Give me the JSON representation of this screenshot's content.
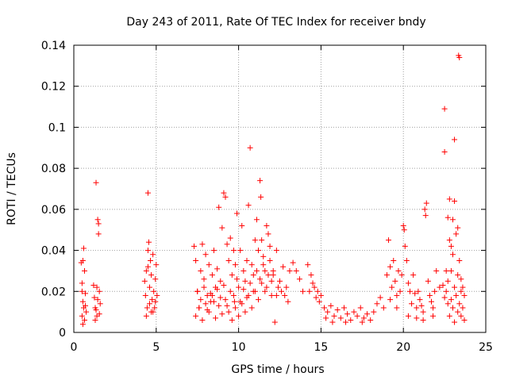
{
  "chart_data": {
    "type": "scatter",
    "title": "Day 243 of 2011, Rate Of TEC Index for receiver bndy",
    "xlabel": "GPS time / hours",
    "ylabel": "ROTI / TECUs",
    "xlim": [
      0,
      25
    ],
    "ylim": [
      0,
      0.14
    ],
    "x_ticks": [
      "0",
      "5",
      "10",
      "15",
      "20",
      "25"
    ],
    "y_ticks": [
      "0",
      "0.02",
      "0.04",
      "0.06",
      "0.08",
      "0.1",
      "0.12",
      "0.14"
    ],
    "grid": true,
    "legend": "none",
    "marker": "+",
    "color": "#ff0000",
    "series": [
      {
        "points": [
          [
            0.45,
            0.034
          ],
          [
            0.5,
            0.024
          ],
          [
            0.55,
            0.015
          ],
          [
            0.6,
            0.041
          ],
          [
            0.65,
            0.03
          ],
          [
            0.5,
            0.008
          ],
          [
            0.55,
            0.004
          ],
          [
            0.6,
            0.012
          ],
          [
            0.7,
            0.019
          ],
          [
            0.75,
            0.01
          ],
          [
            0.5,
            0.02
          ],
          [
            0.65,
            0.006
          ],
          [
            0.7,
            0.013
          ],
          [
            0.55,
            0.035
          ],
          [
            1.2,
            0.023
          ],
          [
            1.25,
            0.017
          ],
          [
            1.3,
            0.012
          ],
          [
            1.35,
            0.073
          ],
          [
            1.4,
            0.008
          ],
          [
            1.45,
            0.055
          ],
          [
            1.5,
            0.053
          ],
          [
            1.5,
            0.048
          ],
          [
            1.55,
            0.02
          ],
          [
            1.6,
            0.014
          ],
          [
            1.3,
            0.006
          ],
          [
            1.4,
            0.022
          ],
          [
            1.55,
            0.009
          ],
          [
            1.45,
            0.016
          ],
          [
            1.35,
            0.011
          ],
          [
            4.3,
            0.025
          ],
          [
            4.35,
            0.018
          ],
          [
            4.4,
            0.03
          ],
          [
            4.45,
            0.012
          ],
          [
            4.5,
            0.068
          ],
          [
            4.5,
            0.04
          ],
          [
            4.55,
            0.044
          ],
          [
            4.6,
            0.022
          ],
          [
            4.65,
            0.035
          ],
          [
            4.7,
            0.028
          ],
          [
            4.75,
            0.016
          ],
          [
            4.8,
            0.038
          ],
          [
            4.85,
            0.02
          ],
          [
            4.9,
            0.012
          ],
          [
            4.95,
            0.026
          ],
          [
            5.0,
            0.033
          ],
          [
            5.05,
            0.018
          ],
          [
            4.4,
            0.008
          ],
          [
            4.6,
            0.014
          ],
          [
            4.8,
            0.01
          ],
          [
            4.95,
            0.015
          ],
          [
            4.5,
            0.032
          ],
          [
            4.7,
            0.01
          ],
          [
            7.3,
            0.042
          ],
          [
            7.4,
            0.035
          ],
          [
            7.5,
            0.02
          ],
          [
            7.6,
            0.012
          ],
          [
            7.7,
            0.03
          ],
          [
            7.8,
            0.043
          ],
          [
            7.9,
            0.026
          ],
          [
            8.0,
            0.038
          ],
          [
            8.1,
            0.018
          ],
          [
            8.2,
            0.033
          ],
          [
            8.3,
            0.015
          ],
          [
            8.4,
            0.028
          ],
          [
            8.5,
            0.04
          ],
          [
            8.6,
            0.022
          ],
          [
            8.7,
            0.031
          ],
          [
            8.8,
            0.061
          ],
          [
            8.9,
            0.025
          ],
          [
            9.0,
            0.051
          ],
          [
            9.1,
            0.068
          ],
          [
            9.2,
            0.066
          ],
          [
            9.3,
            0.043
          ],
          [
            9.4,
            0.035
          ],
          [
            9.5,
            0.046
          ],
          [
            9.6,
            0.028
          ],
          [
            9.7,
            0.04
          ],
          [
            9.75,
            0.015
          ],
          [
            9.8,
            0.033
          ],
          [
            9.9,
            0.058
          ],
          [
            10.0,
            0.022
          ],
          [
            10.1,
            0.04
          ],
          [
            10.2,
            0.052
          ],
          [
            10.3,
            0.03
          ],
          [
            10.4,
            0.025
          ],
          [
            10.5,
            0.035
          ],
          [
            10.6,
            0.062
          ],
          [
            10.7,
            0.09
          ],
          [
            10.8,
            0.033
          ],
          [
            10.9,
            0.028
          ],
          [
            11.0,
            0.045
          ],
          [
            11.1,
            0.055
          ],
          [
            11.2,
            0.04
          ],
          [
            11.3,
            0.074
          ],
          [
            11.35,
            0.066
          ],
          [
            11.4,
            0.045
          ],
          [
            11.5,
            0.037
          ],
          [
            11.6,
            0.03
          ],
          [
            11.7,
            0.052
          ],
          [
            11.8,
            0.048
          ],
          [
            11.9,
            0.042
          ],
          [
            12.0,
            0.025
          ],
          [
            12.1,
            0.028
          ],
          [
            12.3,
            0.04
          ],
          [
            12.5,
            0.025
          ],
          [
            12.7,
            0.032
          ],
          [
            12.9,
            0.022
          ],
          [
            13.1,
            0.03
          ],
          [
            13.3,
            0.034
          ],
          [
            13.5,
            0.03
          ],
          [
            13.7,
            0.026
          ],
          [
            13.9,
            0.02
          ],
          [
            7.4,
            0.008
          ],
          [
            7.6,
            0.012
          ],
          [
            7.8,
            0.006
          ],
          [
            8.0,
            0.014
          ],
          [
            8.2,
            0.01
          ],
          [
            8.4,
            0.018
          ],
          [
            8.6,
            0.007
          ],
          [
            8.8,
            0.013
          ],
          [
            9.0,
            0.009
          ],
          [
            9.2,
            0.016
          ],
          [
            9.4,
            0.01
          ],
          [
            9.6,
            0.006
          ],
          [
            9.8,
            0.012
          ],
          [
            10.0,
            0.008
          ],
          [
            10.2,
            0.014
          ],
          [
            10.4,
            0.01
          ],
          [
            10.6,
            0.018
          ],
          [
            10.8,
            0.012
          ],
          [
            11.0,
            0.02
          ],
          [
            11.2,
            0.016
          ],
          [
            11.4,
            0.024
          ],
          [
            11.6,
            0.02
          ],
          [
            11.8,
            0.028
          ],
          [
            12.0,
            0.018
          ],
          [
            12.2,
            0.005
          ],
          [
            12.4,
            0.022
          ],
          [
            12.6,
            0.02
          ],
          [
            12.8,
            0.018
          ],
          [
            13.0,
            0.015
          ],
          [
            7.5,
            0.02
          ],
          [
            7.7,
            0.016
          ],
          [
            7.9,
            0.022
          ],
          [
            8.1,
            0.011
          ],
          [
            8.3,
            0.019
          ],
          [
            8.5,
            0.015
          ],
          [
            8.7,
            0.021
          ],
          [
            8.9,
            0.017
          ],
          [
            9.1,
            0.023
          ],
          [
            9.3,
            0.013
          ],
          [
            9.5,
            0.02
          ],
          [
            9.7,
            0.018
          ],
          [
            9.9,
            0.026
          ],
          [
            10.1,
            0.015
          ],
          [
            10.3,
            0.021
          ],
          [
            10.5,
            0.017
          ],
          [
            10.7,
            0.024
          ],
          [
            10.9,
            0.02
          ],
          [
            11.1,
            0.03
          ],
          [
            11.3,
            0.026
          ],
          [
            11.5,
            0.033
          ],
          [
            11.7,
            0.022
          ],
          [
            11.9,
            0.035
          ],
          [
            12.1,
            0.03
          ],
          [
            12.3,
            0.018
          ],
          [
            14.2,
            0.033
          ],
          [
            14.4,
            0.028
          ],
          [
            14.6,
            0.022
          ],
          [
            14.8,
            0.02
          ],
          [
            15.0,
            0.018
          ],
          [
            14.3,
            0.02
          ],
          [
            14.5,
            0.024
          ],
          [
            14.7,
            0.017
          ],
          [
            14.9,
            0.015
          ],
          [
            15.2,
            0.012
          ],
          [
            15.4,
            0.01
          ],
          [
            15.6,
            0.013
          ],
          [
            15.8,
            0.008
          ],
          [
            16.0,
            0.011
          ],
          [
            16.2,
            0.007
          ],
          [
            16.4,
            0.012
          ],
          [
            16.6,
            0.009
          ],
          [
            16.8,
            0.006
          ],
          [
            17.0,
            0.01
          ],
          [
            17.2,
            0.008
          ],
          [
            17.4,
            0.012
          ],
          [
            17.6,
            0.007
          ],
          [
            17.8,
            0.009
          ],
          [
            18.0,
            0.006
          ],
          [
            18.2,
            0.01
          ],
          [
            18.4,
            0.014
          ],
          [
            18.6,
            0.017
          ],
          [
            18.8,
            0.012
          ],
          [
            15.3,
            0.007
          ],
          [
            15.7,
            0.005
          ],
          [
            16.5,
            0.005
          ],
          [
            17.5,
            0.005
          ],
          [
            19.0,
            0.028
          ],
          [
            19.1,
            0.045
          ],
          [
            19.2,
            0.032
          ],
          [
            19.3,
            0.022
          ],
          [
            19.4,
            0.035
          ],
          [
            19.5,
            0.025
          ],
          [
            19.6,
            0.018
          ],
          [
            19.7,
            0.03
          ],
          [
            19.8,
            0.02
          ],
          [
            19.9,
            0.028
          ],
          [
            20.0,
            0.052
          ],
          [
            20.05,
            0.05
          ],
          [
            20.1,
            0.042
          ],
          [
            20.2,
            0.035
          ],
          [
            20.3,
            0.024
          ],
          [
            20.4,
            0.02
          ],
          [
            20.5,
            0.014
          ],
          [
            20.6,
            0.028
          ],
          [
            20.7,
            0.019
          ],
          [
            20.8,
            0.012
          ],
          [
            20.9,
            0.02
          ],
          [
            21.0,
            0.016
          ],
          [
            21.1,
            0.013
          ],
          [
            21.2,
            0.01
          ],
          [
            21.3,
            0.06
          ],
          [
            21.35,
            0.057
          ],
          [
            21.4,
            0.063
          ],
          [
            21.5,
            0.025
          ],
          [
            21.6,
            0.018
          ],
          [
            21.7,
            0.015
          ],
          [
            21.8,
            0.012
          ],
          [
            21.9,
            0.02
          ],
          [
            22.0,
            0.03
          ],
          [
            19.2,
            0.016
          ],
          [
            19.6,
            0.012
          ],
          [
            20.3,
            0.008
          ],
          [
            20.8,
            0.007
          ],
          [
            21.2,
            0.006
          ],
          [
            21.8,
            0.008
          ],
          [
            22.5,
            0.109
          ],
          [
            22.5,
            0.088
          ],
          [
            23.1,
            0.094
          ],
          [
            23.35,
            0.135
          ],
          [
            23.4,
            0.134
          ],
          [
            22.6,
            0.03
          ],
          [
            22.7,
            0.056
          ],
          [
            22.8,
            0.065
          ],
          [
            22.9,
            0.042
          ],
          [
            23.0,
            0.038
          ],
          [
            23.1,
            0.064
          ],
          [
            23.2,
            0.048
          ],
          [
            23.3,
            0.051
          ],
          [
            23.4,
            0.035
          ],
          [
            23.5,
            0.026
          ],
          [
            23.6,
            0.022
          ],
          [
            23.7,
            0.018
          ],
          [
            22.6,
            0.02
          ],
          [
            22.7,
            0.014
          ],
          [
            22.8,
            0.008
          ],
          [
            22.9,
            0.016
          ],
          [
            23.0,
            0.012
          ],
          [
            23.1,
            0.005
          ],
          [
            23.2,
            0.018
          ],
          [
            23.3,
            0.01
          ],
          [
            23.4,
            0.014
          ],
          [
            23.5,
            0.008
          ],
          [
            23.6,
            0.012
          ],
          [
            23.7,
            0.006
          ],
          [
            22.4,
            0.023
          ],
          [
            22.5,
            0.017
          ],
          [
            22.7,
            0.025
          ],
          [
            22.9,
            0.03
          ],
          [
            23.1,
            0.022
          ],
          [
            23.3,
            0.028
          ],
          [
            23.5,
            0.02
          ],
          [
            22.8,
            0.045
          ],
          [
            23.0,
            0.055
          ],
          [
            22.2,
            0.022
          ]
        ]
      }
    ]
  }
}
